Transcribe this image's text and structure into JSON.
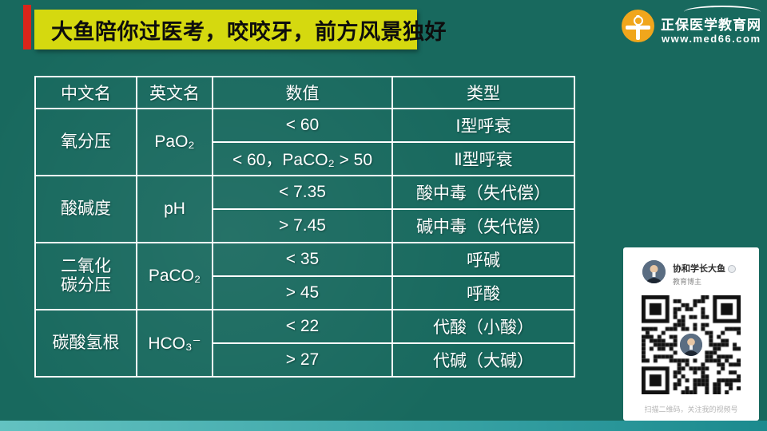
{
  "banner": {
    "text": "大鱼陪你过医考，咬咬牙，前方风景独好"
  },
  "logo": {
    "title": "正保医学教育网",
    "url": "www.med66.com"
  },
  "table": {
    "headers": [
      "中文名",
      "英文名",
      "数值",
      "类型"
    ],
    "groups": [
      {
        "cn_lines": [
          "氧分压"
        ],
        "en": "PaO₂",
        "rows": [
          {
            "value": "< 60",
            "type": "Ⅰ型呼衰"
          },
          {
            "value": "< 60，PaCO₂ > 50",
            "type": "Ⅱ型呼衰"
          }
        ]
      },
      {
        "cn_lines": [
          "酸碱度"
        ],
        "en": "pH",
        "rows": [
          {
            "value": "< 7.35",
            "type": "酸中毒（失代偿）"
          },
          {
            "value": "> 7.45",
            "type": "碱中毒（失代偿）"
          }
        ]
      },
      {
        "cn_lines": [
          "二氧化",
          "碳分压"
        ],
        "en": "PaCO₂",
        "rows": [
          {
            "value": "< 35",
            "type": "呼碱"
          },
          {
            "value": "> 45",
            "type": "呼酸"
          }
        ]
      },
      {
        "cn_lines": [
          "碳酸氢根"
        ],
        "en": "HCO₃⁻",
        "rows": [
          {
            "value": "< 22",
            "type": "代酸（小酸）"
          },
          {
            "value": "> 27",
            "type": "代碱（大碱）"
          }
        ]
      }
    ]
  },
  "qr_card": {
    "name": "协和学长大鱼",
    "role": "教育博主",
    "caption": "扫描二维码，关注我的视频号"
  },
  "colors": {
    "background": "#18695e",
    "banner_bg": "#d5d90f",
    "banner_text": "#0d0d0d",
    "accent_red": "#d9251a",
    "logo_orange": "#f0a61c",
    "table_border": "#ffffff",
    "table_text": "#ffffff",
    "bottom_bar_left": "#63c2c1",
    "bottom_bar_right": "#1b8a8e",
    "card_bg": "#ffffff"
  }
}
